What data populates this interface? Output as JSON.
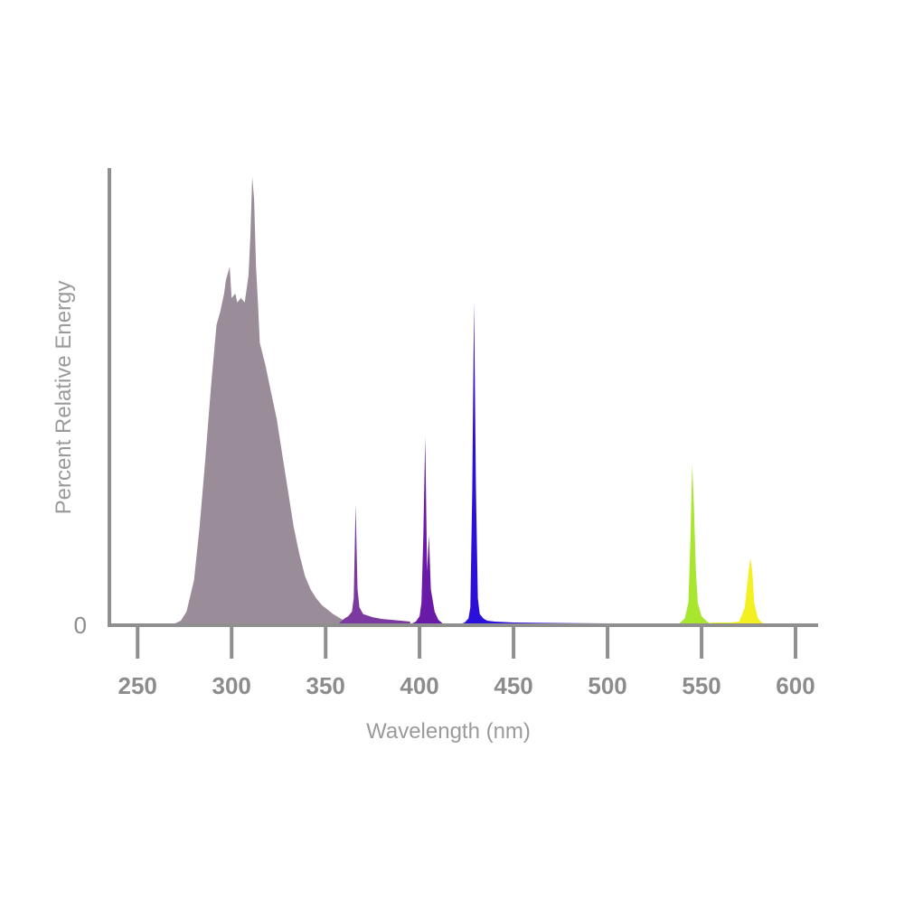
{
  "chart_data": {
    "type": "area",
    "title": "",
    "xlabel": "Wavelength (nm)",
    "ylabel": "Percent Relative Energy",
    "xlim": [
      235,
      612
    ],
    "ylim": [
      0,
      102
    ],
    "x_ticks": [
      {
        "value": 250,
        "label": "250"
      },
      {
        "value": 300,
        "label": "300"
      },
      {
        "value": 350,
        "label": "350"
      },
      {
        "value": 400,
        "label": "400"
      },
      {
        "value": 450,
        "label": "450"
      },
      {
        "value": 500,
        "label": "500"
      },
      {
        "value": 550,
        "label": "550"
      },
      {
        "value": 600,
        "label": "600"
      }
    ],
    "y_ticks": [
      {
        "value": 0,
        "label": "0"
      }
    ],
    "grid": false,
    "legend": "none",
    "series": [
      {
        "color": "#9a8c99",
        "x": [
          265,
          270,
          273,
          276,
          280,
          283,
          286,
          289,
          292,
          294,
          295,
          296,
          297,
          299,
          300,
          302,
          303,
          305,
          307,
          308,
          309,
          310,
          311,
          312,
          313,
          314,
          315,
          318,
          321,
          324,
          327,
          330,
          333,
          336,
          339,
          342,
          345,
          348,
          351,
          354,
          356,
          358,
          360
        ],
        "y": [
          0,
          0.4,
          1,
          3,
          10,
          22,
          37,
          53,
          67,
          70,
          72,
          74,
          77,
          80,
          73,
          74,
          72,
          73,
          72,
          75,
          78,
          87,
          100,
          95,
          80,
          72,
          63,
          58,
          52,
          46,
          38,
          30,
          22,
          16,
          11,
          8,
          6,
          4.5,
          3.5,
          2.5,
          2,
          1.5,
          1
        ]
      },
      {
        "color": "#7a3aa0",
        "x": [
          356,
          360,
          362,
          364,
          365,
          366,
          367,
          368,
          370,
          375,
          380,
          385,
          390,
          395
        ],
        "y": [
          0,
          1.5,
          2,
          3,
          6,
          27,
          8,
          4,
          2.5,
          1.8,
          1.4,
          1.2,
          1,
          0.8
        ]
      },
      {
        "color": "#6a1aa8",
        "x": [
          394,
          398,
          400,
          401,
          402,
          403,
          404,
          405,
          406,
          408,
          410,
          412
        ],
        "y": [
          0,
          0.8,
          2,
          5,
          20,
          42,
          12,
          20,
          8,
          3,
          1.2,
          0.5
        ]
      },
      {
        "color": "#2a10d8",
        "x": [
          420,
          424,
          426,
          427,
          428,
          429,
          430,
          431,
          432,
          434,
          436,
          440,
          450,
          470,
          500,
          520,
          540
        ],
        "y": [
          0,
          0.6,
          1.5,
          4,
          30,
          72,
          30,
          6,
          2.5,
          1.5,
          1,
          0.8,
          0.6,
          0.5,
          0.4,
          0.4,
          0
        ]
      },
      {
        "color": "#a8e630",
        "x": [
          537,
          541,
          543,
          544,
          545,
          546,
          547,
          548,
          550,
          553,
          556
        ],
        "y": [
          0,
          1.5,
          5,
          18,
          36,
          26,
          12,
          5,
          2,
          0.8,
          0
        ]
      },
      {
        "color": "#f2f020",
        "x": [
          550,
          556,
          565,
          570,
          573,
          575,
          576,
          577,
          578,
          580,
          582,
          586
        ],
        "y": [
          0,
          0.6,
          0.6,
          0.8,
          4,
          12,
          15,
          12,
          5,
          1.5,
          0.6,
          0
        ]
      }
    ]
  }
}
